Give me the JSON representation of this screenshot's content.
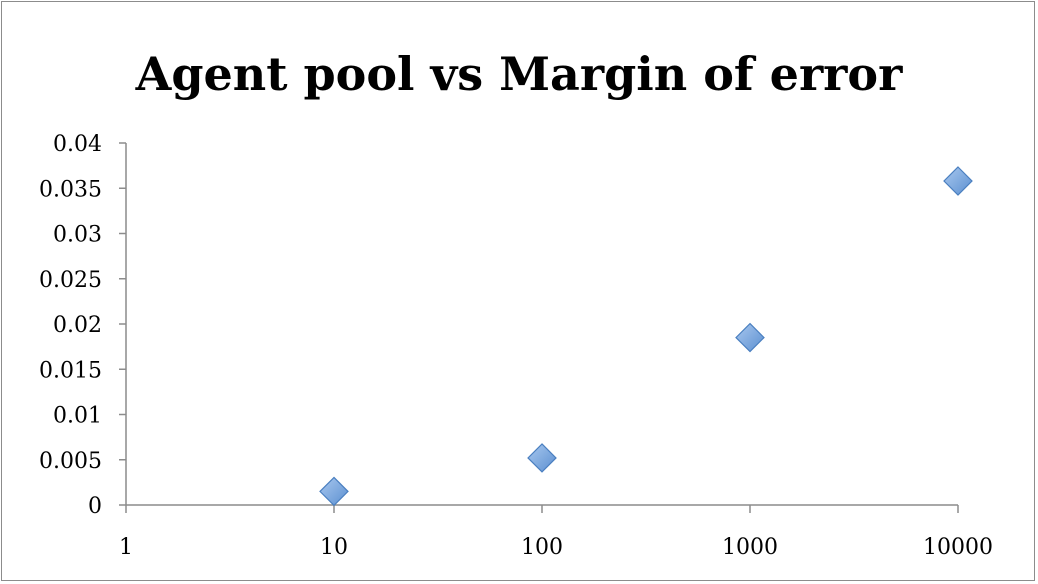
{
  "chart_data": {
    "type": "scatter",
    "title": "Agent pool vs Margin of error",
    "xlabel": "",
    "ylabel": "",
    "x_scale": "log",
    "xlim": [
      1,
      10000
    ],
    "ylim": [
      0,
      0.04
    ],
    "x_ticks": [
      "1",
      "10",
      "100",
      "1000",
      "10000"
    ],
    "y_ticks": [
      "0",
      "0.005",
      "0.01",
      "0.015",
      "0.02",
      "0.025",
      "0.03",
      "0.035",
      "0.04"
    ],
    "grid": false,
    "legend": "none",
    "series": [
      {
        "color": "#6f9fd8",
        "points": [
          {
            "x": 10,
            "y": 0.0015
          },
          {
            "x": 100,
            "y": 0.0052
          },
          {
            "x": 1000,
            "y": 0.0185
          },
          {
            "x": 10000,
            "y": 0.0358
          }
        ]
      }
    ]
  }
}
